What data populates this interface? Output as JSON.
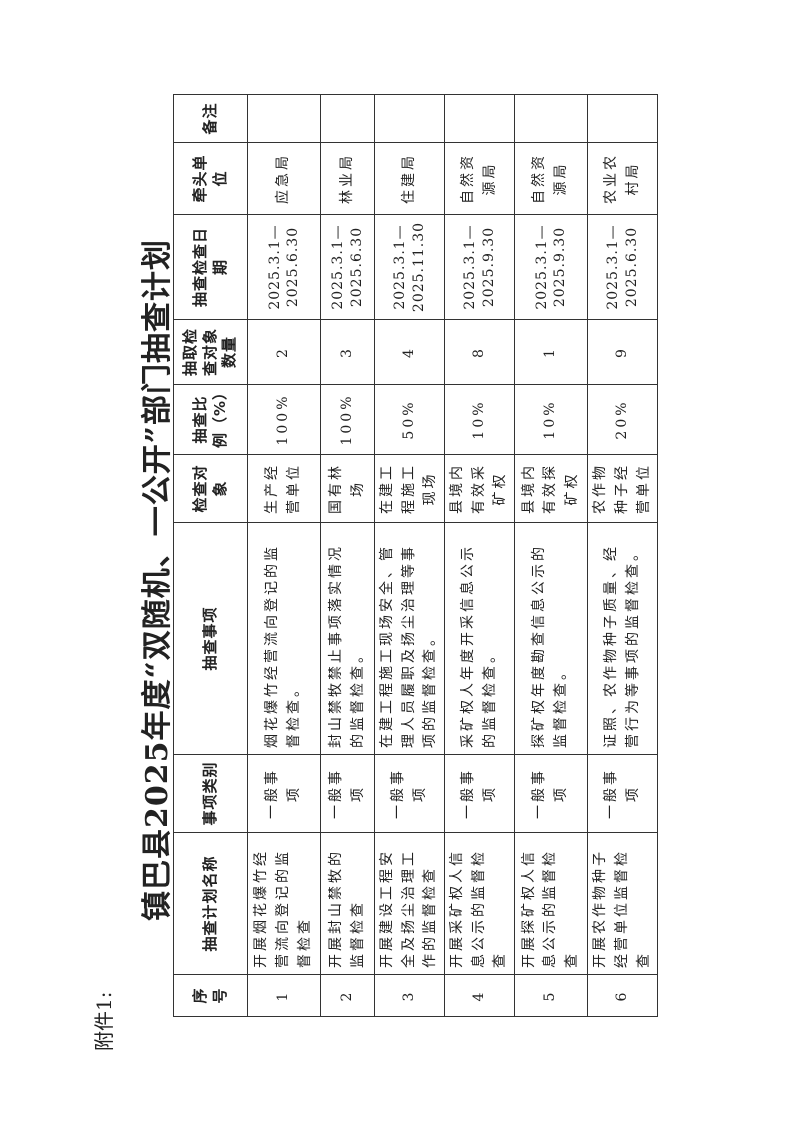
{
  "attachment_label": "附件1:",
  "title": "镇巴县2025年度“双随机、一公开”部门抽查计划",
  "table": {
    "headers": [
      "序号",
      "抽查计划名称",
      "事项类别",
      "抽查事项",
      "检查对象",
      "抽查比例（%）",
      "抽取检查对象数量",
      "抽查检查日期",
      "牵头单位",
      "备注"
    ],
    "rows": [
      {
        "no": "1",
        "name": "开展烟花爆竹经营流向登记的监督检查",
        "category": "一般事项",
        "item": "烟花爆竹经营流向登记的监督检查。",
        "target": "生产经营单位",
        "ratio": "100%",
        "count": "2",
        "date_start": "2025.3.1—",
        "date_end": "2025.6.30",
        "lead": "应急局",
        "note": ""
      },
      {
        "no": "2",
        "name": "开展封山禁牧的监督检查",
        "category": "一般事项",
        "item": "封山禁牧禁止事项落实情况的监督检查。",
        "target": "国有林场",
        "ratio": "100%",
        "count": "3",
        "date_start": "2025.3.1—",
        "date_end": "2025.6.30",
        "lead": "林业局",
        "note": ""
      },
      {
        "no": "3",
        "name": "开展建设工程安全及扬尘治理工作的监督检查",
        "category": "一般事项",
        "item": "在建工程施工现场安全、管理人员履职及扬尘治理等事项的监督检查。",
        "target": "在建工程施工现场",
        "ratio": "50%",
        "count": "4",
        "date_start": "2025.3.1—",
        "date_end": "2025.11.30",
        "lead": "住建局",
        "note": ""
      },
      {
        "no": "4",
        "name": "开展采矿权人信息公示的监督检查",
        "category": "一般事项",
        "item": "采矿权人年度开采信息公示的监督检查。",
        "target": "县境内有效采矿权",
        "ratio": "10%",
        "count": "8",
        "date_start": "2025.3.1—",
        "date_end": "2025.9.30",
        "lead": "自然资源局",
        "note": ""
      },
      {
        "no": "5",
        "name": "开展探矿权人信息公示的监督检查",
        "category": "一般事项",
        "item": "探矿权年度勘查信息公示的监督检查。",
        "target": "县境内有效探矿权",
        "ratio": "10%",
        "count": "1",
        "date_start": "2025.3.1—",
        "date_end": "2025.9.30",
        "lead": "自然资源局",
        "note": ""
      },
      {
        "no": "6",
        "name": "开展农作物种子经营单位监督检查",
        "category": "一般事项",
        "item": "证照、农作物种子质量、经营行为等事项的监督检查。",
        "target": "农作物种子经营单位",
        "ratio": "20%",
        "count": "9",
        "date_start": "2025.3.1—",
        "date_end": "2025.6.30",
        "lead": "农业农村局",
        "note": ""
      }
    ]
  }
}
